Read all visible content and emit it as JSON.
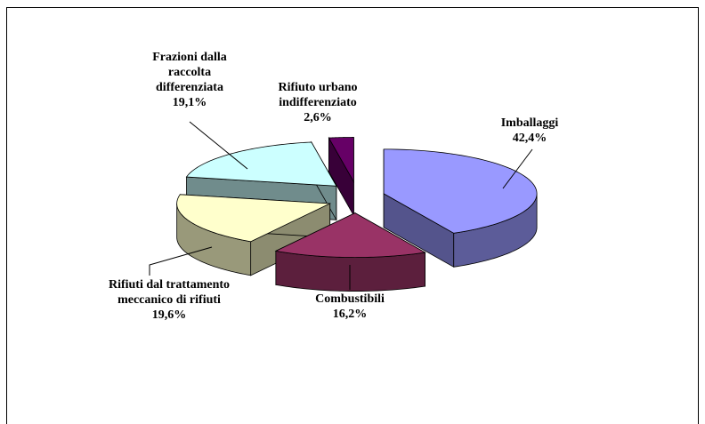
{
  "chart_data": {
    "type": "pie3d",
    "categories": [
      "Imballaggi",
      "Combustibili",
      "Rifiuti dal trattamento meccanico di rifiuti",
      "Frazioni dalla raccolta differenziata",
      "Rifiuto urbano indifferenziato"
    ],
    "values": [
      42.4,
      16.2,
      19.6,
      19.1,
      2.6
    ],
    "value_labels": [
      "42,4%",
      "16,2%",
      "19,6%",
      "19,1%",
      "2,6%"
    ],
    "colors": [
      "#9999ff",
      "#993366",
      "#ffffcc",
      "#ccffff",
      "#660066"
    ]
  }
}
